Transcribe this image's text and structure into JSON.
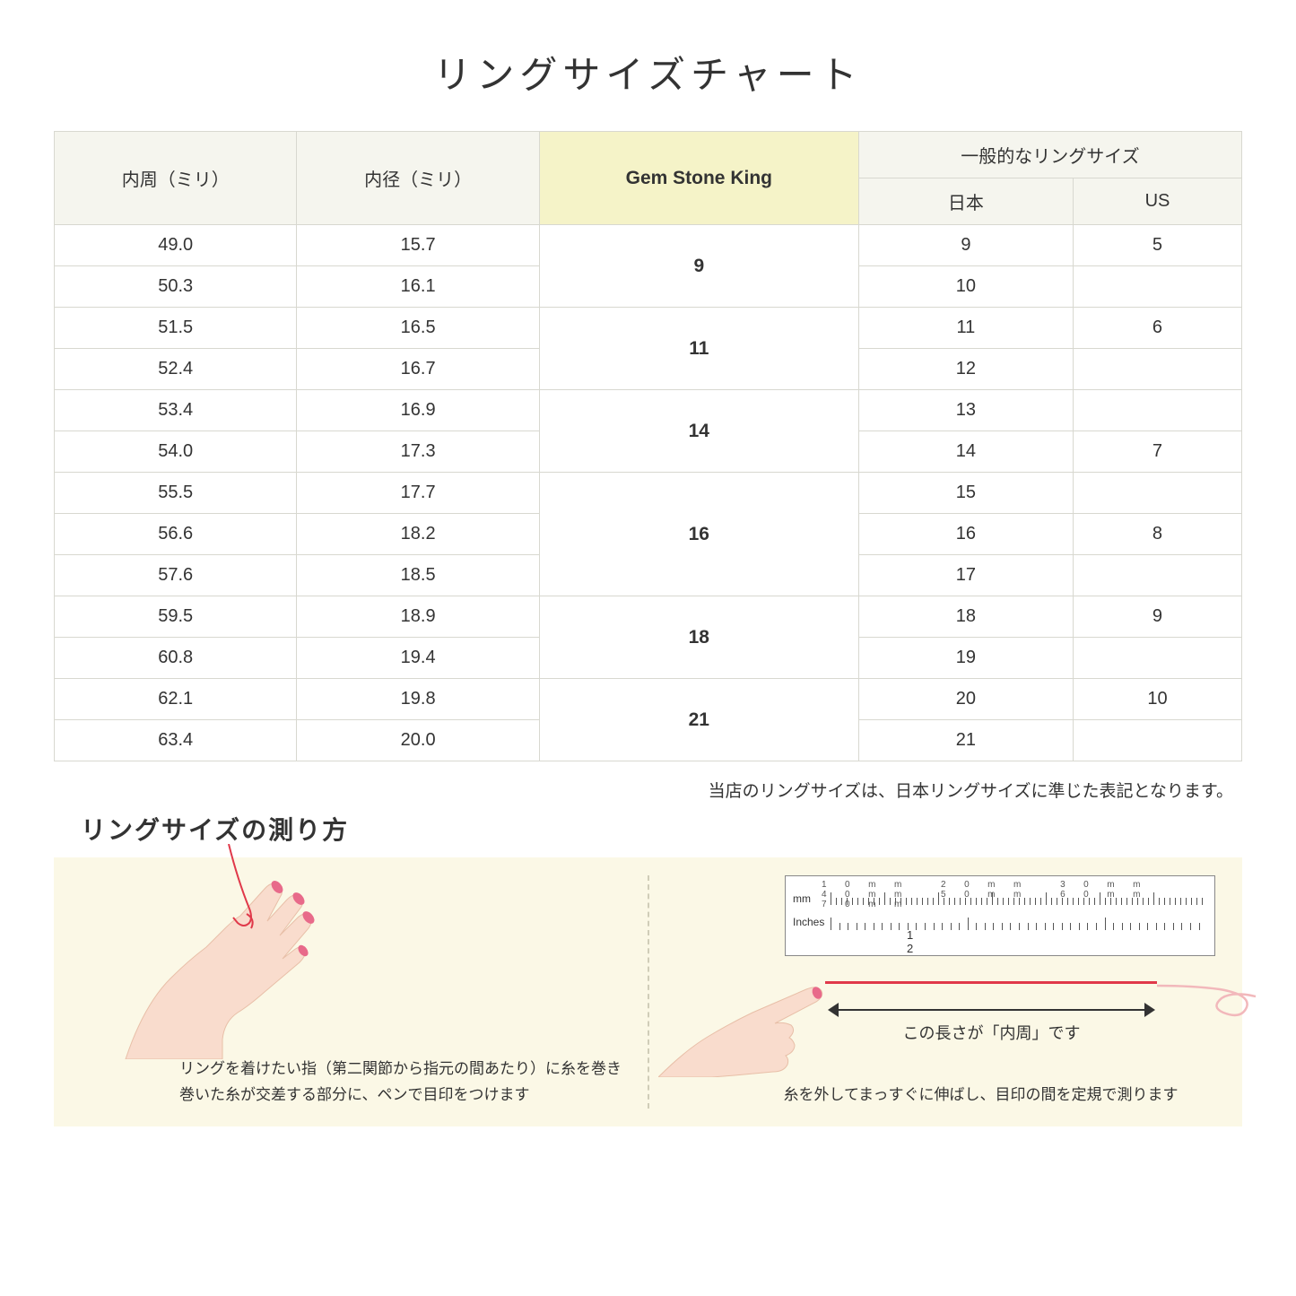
{
  "title": "リングサイズチャート",
  "columns": {
    "circumference": "内周（ミリ）",
    "diameter": "内径（ミリ）",
    "gsk": "Gem Stone King",
    "general_group": "一般的なリングサイズ",
    "japan": "日本",
    "us": "US"
  },
  "groups": [
    {
      "gsk": "9",
      "rows": [
        {
          "circ": "49.0",
          "dia": "15.7",
          "jp": "9",
          "us": "5"
        },
        {
          "circ": "50.3",
          "dia": "16.1",
          "jp": "10",
          "us": ""
        }
      ]
    },
    {
      "gsk": "11",
      "rows": [
        {
          "circ": "51.5",
          "dia": "16.5",
          "jp": "11",
          "us": "6"
        },
        {
          "circ": "52.4",
          "dia": "16.7",
          "jp": "12",
          "us": ""
        }
      ]
    },
    {
      "gsk": "14",
      "rows": [
        {
          "circ": "53.4",
          "dia": "16.9",
          "jp": "13",
          "us": ""
        },
        {
          "circ": "54.0",
          "dia": "17.3",
          "jp": "14",
          "us": "7"
        }
      ]
    },
    {
      "gsk": "16",
      "rows": [
        {
          "circ": "55.5",
          "dia": "17.7",
          "jp": "15",
          "us": ""
        },
        {
          "circ": "56.6",
          "dia": "18.2",
          "jp": "16",
          "us": "8"
        },
        {
          "circ": "57.6",
          "dia": "18.5",
          "jp": "17",
          "us": ""
        }
      ]
    },
    {
      "gsk": "18",
      "rows": [
        {
          "circ": "59.5",
          "dia": "18.9",
          "jp": "18",
          "us": "9"
        },
        {
          "circ": "60.8",
          "dia": "19.4",
          "jp": "19",
          "us": ""
        }
      ]
    },
    {
      "gsk": "21",
      "rows": [
        {
          "circ": "62.1",
          "dia": "19.8",
          "jp": "20",
          "us": "10"
        },
        {
          "circ": "63.4",
          "dia": "20.0",
          "jp": "21",
          "us": ""
        }
      ]
    }
  ],
  "note": "当店のリングサイズは、日本リングサイズに準じた表記となります。",
  "subtitle": "リングサイズの測り方",
  "howto": {
    "left_caption": "リングを着けたい指（第二関節から指元の間あたり）に糸を巻き\n巻いた糸が交差する部分に、ペンで目印をつけます",
    "right_caption": "糸を外してまっすぐに伸ばし、目印の間を定規で測ります",
    "arrow_label": "この長さが「内周」です",
    "ruler": {
      "mm_label": "mm",
      "in_label": "Inches",
      "mm_marks": "10mm   20mm   30mm   40mm   50mm   60mm   70mm",
      "in_marks": "1 2"
    }
  },
  "colors": {
    "header_bg": "#f5f5ee",
    "highlight_bg": "#f5f3c8",
    "border": "#d8d8d0",
    "howto_bg": "#fbf8e6",
    "skin": "#f9dccd",
    "skin_shadow": "#f0c5b0",
    "nail": "#e86a8a",
    "thread": "#e0394a"
  }
}
